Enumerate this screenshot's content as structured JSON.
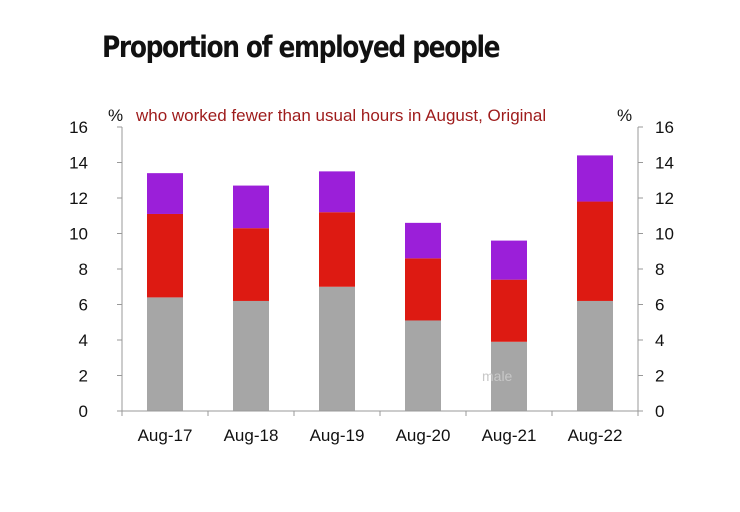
{
  "chart_data": {
    "type": "bar",
    "stacked": true,
    "title": "Proportion of employed people",
    "subtitle": "who worked fewer than usual hours in August, Original",
    "y_unit_left": "%",
    "y_unit_right": "%",
    "categories": [
      "Aug-17",
      "Aug-18",
      "Aug-19",
      "Aug-20",
      "Aug-21",
      "Aug-22"
    ],
    "series": [
      {
        "values": [
          6.4,
          6.2,
          7.0,
          5.1,
          3.9,
          6.2
        ]
      },
      {
        "values": [
          4.7,
          4.1,
          4.2,
          3.5,
          3.5,
          5.6
        ]
      },
      {
        "values": [
          2.3,
          2.4,
          2.3,
          2.0,
          2.2,
          2.6
        ]
      }
    ],
    "inline_label": "male",
    "ylim": [
      0,
      16
    ],
    "yticks": [
      0,
      2,
      4,
      6,
      8,
      10,
      12,
      14,
      16
    ],
    "colors": {
      "series": [
        "#a6a6a6",
        "#dd1a12",
        "#9b1fd9"
      ],
      "subtitle": "#9e1b1b",
      "axis": "#999999"
    },
    "grid": false,
    "legend": "none"
  }
}
